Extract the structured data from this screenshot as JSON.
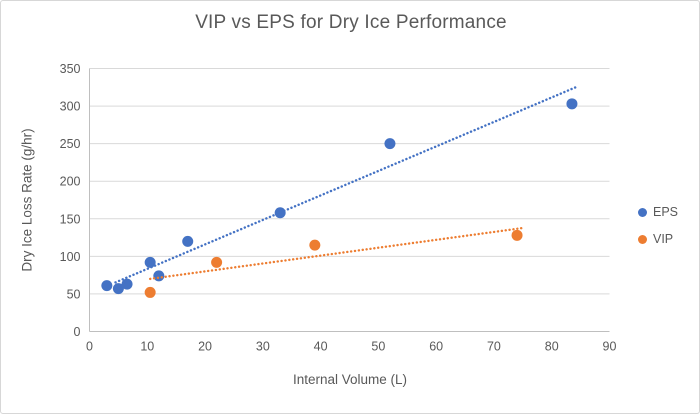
{
  "colors": {
    "background": "#ffffff",
    "border": "#d7d7d7",
    "grid": "#d9d9d9",
    "axis": "#bfbfbf",
    "text": "#595959",
    "eps_blue": "#4472C4",
    "vip_orange": "#ED7D31"
  },
  "chart_data": {
    "type": "scatter",
    "title": "VIP vs EPS for Dry Ice Performance",
    "xlabel": "Internal Volume (L)",
    "ylabel": "Dry Ice Loss Rate (g/hr)",
    "xlim": [
      0,
      90
    ],
    "ylim": [
      0,
      350
    ],
    "xticks": [
      0,
      10,
      20,
      30,
      40,
      50,
      60,
      70,
      80,
      90
    ],
    "yticks": [
      0,
      50,
      100,
      150,
      200,
      250,
      300,
      350
    ],
    "grid": "horizontal",
    "legend_position": "right",
    "series": [
      {
        "name": "EPS",
        "color": "#4472C4",
        "points": [
          [
            3,
            61
          ],
          [
            5,
            57
          ],
          [
            6.5,
            63
          ],
          [
            10.5,
            92
          ],
          [
            12,
            74
          ],
          [
            17,
            120
          ],
          [
            33,
            158
          ],
          [
            52,
            250
          ],
          [
            83.5,
            303
          ]
        ],
        "trendline": {
          "style": "dotted",
          "slope": 3.26,
          "intercept": 50.7,
          "x_start": 4.5,
          "x_end": 84.5
        }
      },
      {
        "name": "VIP",
        "color": "#ED7D31",
        "points": [
          [
            10.5,
            52
          ],
          [
            22,
            92
          ],
          [
            39,
            115
          ],
          [
            74,
            128
          ]
        ],
        "trendline": {
          "style": "dotted",
          "slope": 1.05,
          "intercept": 59,
          "x_start": 10.5,
          "x_end": 75
        }
      }
    ]
  }
}
